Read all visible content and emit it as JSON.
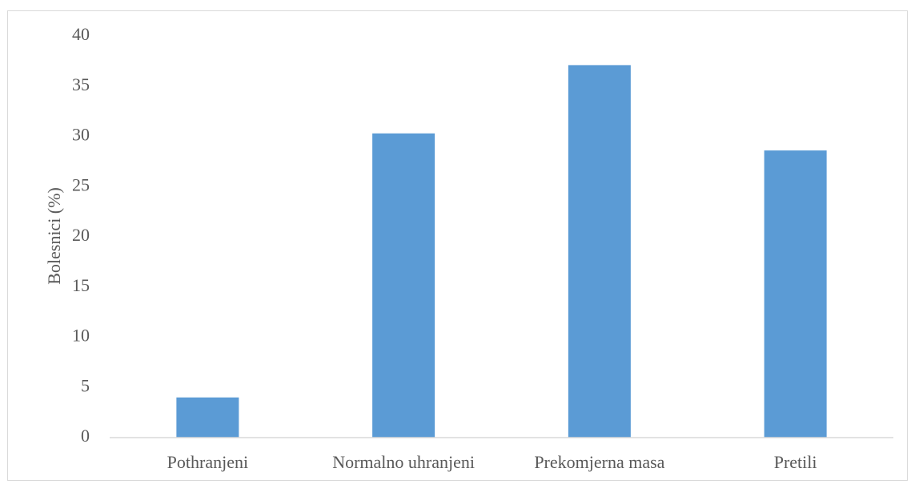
{
  "chart_data": {
    "type": "bar",
    "title": "",
    "xlabel": "",
    "ylabel": "Bolesnici (%)",
    "categories": [
      "Pothranjeni",
      "Normalno uhranjeni",
      "Prekomjerna masa",
      "Pretili"
    ],
    "values": [
      4.0,
      30.3,
      37.1,
      28.6
    ],
    "ylim": [
      0,
      40
    ],
    "yticks": [
      0,
      5,
      10,
      15,
      20,
      25,
      30,
      35,
      40
    ],
    "grid": false,
    "legend": "none",
    "bar_color": "#5b9bd5",
    "axis_color": "#d9d9d9",
    "text_color": "#595959"
  }
}
